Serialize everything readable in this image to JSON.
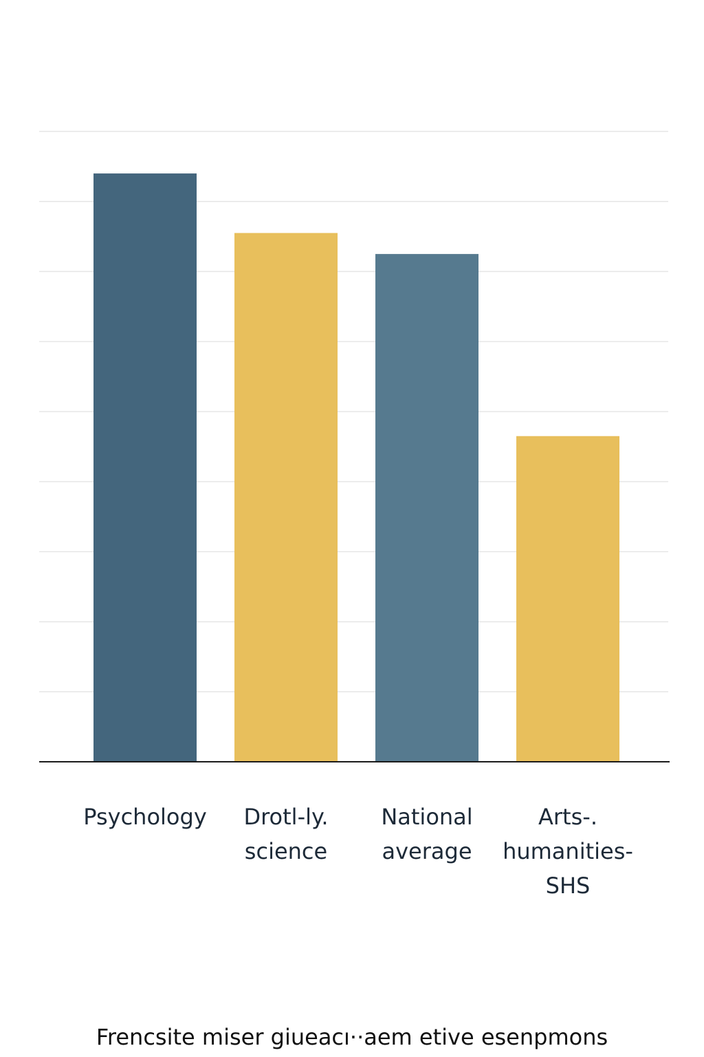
{
  "chart_data": {
    "type": "bar",
    "title": "Frencsite miser giueacı··aem etive esenpmons",
    "categories": [
      "Psychology",
      "Drotl-ly.\nscience",
      "National\naverage",
      "Arts-.\nhumanities-\nSHS"
    ],
    "values": [
      8.4,
      7.55,
      7.25,
      4.65
    ],
    "colors": [
      "#44667d",
      "#e8bf5c",
      "#567a8f",
      "#e8bf5c"
    ],
    "ylim": [
      0,
      9
    ],
    "yticks": [
      0,
      1,
      2,
      3,
      4,
      5,
      6,
      7,
      8,
      9
    ],
    "grid": true
  }
}
